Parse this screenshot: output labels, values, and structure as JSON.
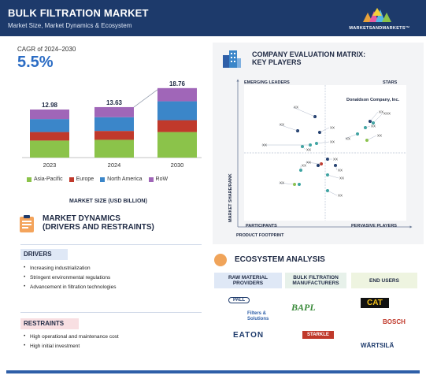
{
  "header": {
    "title": "BULK FILTRATION MARKET",
    "subtitle": "Market Size, Market Dynamics & Ecosystem",
    "logo_text": "MARKETSANDMARKETS™"
  },
  "cagr": {
    "label": "CAGR of 2024–2030",
    "value": "5.5%"
  },
  "chart_data": {
    "type": "bar",
    "stacked": true,
    "categories": [
      "2023",
      "2024",
      "2030"
    ],
    "totals": [
      12.98,
      13.63,
      18.76
    ],
    "series": [
      {
        "name": "Asia-Pacific",
        "color": "#8bc34a",
        "values": [
          4.6,
          4.8,
          6.9
        ]
      },
      {
        "name": "Europe",
        "color": "#c0392b",
        "values": [
          2.3,
          2.4,
          3.2
        ]
      },
      {
        "name": "North America",
        "color": "#3b86c9",
        "values": [
          3.5,
          3.7,
          5.1
        ]
      },
      {
        "name": "RoW",
        "color": "#a066b8",
        "values": [
          2.58,
          2.73,
          3.56
        ]
      }
    ],
    "xlabel": "MARKET SIZE (USD BILLION)",
    "ylim": [
      0,
      20
    ]
  },
  "dynamics": {
    "title_line1": "MARKET DYNAMICS",
    "title_line2": "(DRIVERS AND RESTRAINTS)",
    "drivers_label": "DRIVERS",
    "drivers": [
      "Increasing industrialization",
      "Stringent environmental regulations",
      "Advancement in filtration technologies"
    ],
    "restraints_label": "RESTRAINTS",
    "restraints": [
      "High operational and maintenance cost",
      "High initial investment"
    ]
  },
  "matrix": {
    "title_line1": "COMPANY EVALUATION MATRIX:",
    "title_line2": "KEY PLAYERS",
    "quadrants": {
      "top_left": "EMERGING LEADERS",
      "top_right": "STARS",
      "bottom_left": "PARTICIPANTS",
      "bottom_right": "PERVASIVE PLAYERS"
    },
    "x_axis": "PRODUCT FOOTPRINT",
    "y_axis": "MARKET SHARE/RANK",
    "highlight": "Donaldson Company, Inc.",
    "placeholder_label": "XX",
    "placeholder_label_2": "XXX",
    "colors": {
      "navy": "#1d3a6b",
      "teal": "#3aa3a0",
      "green": "#8bc34a",
      "red": "#c0392b",
      "blue": "#3b86c9"
    }
  },
  "ecosystem": {
    "title": "ECOSYSTEM ANALYSIS",
    "headers": [
      "RAW MATERIAL PROVIDERS",
      "BULK FILTRATION MANUFACTURERS",
      "END USERS"
    ],
    "logos": [
      "PALL",
      "Filters & Solutions",
      "BAPL",
      "CAT",
      "BOSCH",
      "EATON",
      "STARKLE",
      "WÄRTSILÄ"
    ]
  }
}
